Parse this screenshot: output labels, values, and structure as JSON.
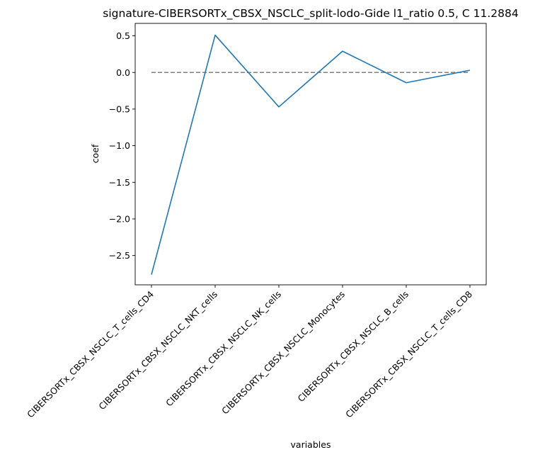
{
  "chart_data": {
    "type": "line",
    "title": "signature-CIBERSORTx_CBSX_NSCLC_split-lodo-Gide l1_ratio 0.5, C 11.2884",
    "xlabel": "variables",
    "ylabel": "coef",
    "categories": [
      "CIBERSORTx_CBSX_NSCLC_T_cells_CD4",
      "CIBERSORTx_CBSX_NSCLC_NKT_cells",
      "CIBERSORTx_CBSX_NSCLC_NK_cells",
      "CIBERSORTx_CBSX_NSCLC_Monocytes",
      "CIBERSORTx_CBSX_NSCLC_B_cells",
      "CIBERSORTx_CBSX_NSCLC_T_cells_CD8"
    ],
    "series": [
      {
        "values": [
          -2.76,
          0.51,
          -0.47,
          0.29,
          -0.14,
          0.03
        ],
        "color": "#1f77b4"
      }
    ],
    "reference_line": {
      "y": 0,
      "style": "dashed",
      "color": "#808080"
    },
    "yticks": [
      0.5,
      0.0,
      -0.5,
      -1.0,
      -1.5,
      -2.0,
      -2.5
    ],
    "ytick_labels": [
      "0.5",
      "0.0",
      "−0.5",
      "−1.0",
      "−1.5",
      "−2.0",
      "−2.5"
    ],
    "ylim": [
      -2.9,
      0.67
    ],
    "grid": false,
    "legend": "none"
  }
}
